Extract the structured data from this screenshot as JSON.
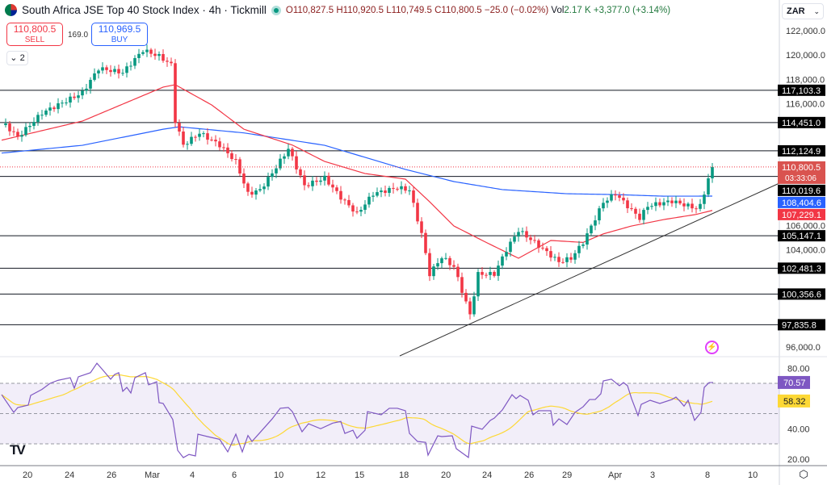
{
  "header": {
    "title": "South Africa JSE Top 40 Stock Index · 4h · Tickmill",
    "open": "O110,827.5",
    "high": "H110,920.5",
    "low": "L110,749.5",
    "close": "C110,800.5",
    "change": "−25.0 (−0.02%)",
    "vol_label": "Vol",
    "volume": "2.17 K",
    "vol_change": "+3,377.0 (+3.14%)"
  },
  "trade": {
    "sell_price": "110,800.5",
    "sell_label": "SELL",
    "spread": "169.0",
    "buy_price": "110,969.5",
    "buy_label": "BUY"
  },
  "indicators_toggle": "2",
  "currency": "ZAR",
  "colors": {
    "up": "#089981",
    "down": "#f23645",
    "ma_fast": "#f23645",
    "ma_slow": "#2962ff",
    "rsi": "#7e57c2",
    "rsi_ma": "#fdd835",
    "level": "#131722"
  },
  "chart_data": {
    "type": "candlestick",
    "price_axis": {
      "range": [
        95000,
        123500
      ],
      "ticks": [
        "122,000.0",
        "120,000.0",
        "118,000.0",
        "116,000.0",
        "106,000.0",
        "104,000.0",
        "96,000.0"
      ],
      "tick_values": [
        122000,
        120000,
        118000,
        116000,
        106000,
        104000,
        96000
      ]
    },
    "x_labels": [
      "20",
      "24",
      "26",
      "Mar",
      "4",
      "6",
      "10",
      "12",
      "15",
      "18",
      "20",
      "24",
      "26",
      "29",
      "Apr",
      "3",
      "8",
      "10"
    ],
    "x_label_bars": [
      6.4,
      16.8,
      27.2,
      36.6,
      47.8,
      58.2,
      68.6,
      79,
      88.6,
      99.6,
      110,
      120.2,
      130.6,
      140,
      151.4,
      161.8,
      175.4,
      186
    ],
    "close_keypoints": [
      [
        1,
        114240
      ],
      [
        4,
        113250
      ],
      [
        10,
        115240
      ],
      [
        20,
        116900
      ],
      [
        24,
        118900
      ],
      [
        30,
        118550
      ],
      [
        35,
        120400
      ],
      [
        39,
        119900
      ],
      [
        42,
        119200
      ],
      [
        43,
        114600
      ],
      [
        45,
        112600
      ],
      [
        49,
        113600
      ],
      [
        54,
        112600
      ],
      [
        58,
        111250
      ],
      [
        61,
        108600
      ],
      [
        64,
        108900
      ],
      [
        67,
        110300
      ],
      [
        71,
        112300
      ],
      [
        75,
        109250
      ],
      [
        80,
        109900
      ],
      [
        84,
        108300
      ],
      [
        88,
        106950
      ],
      [
        92,
        108600
      ],
      [
        98,
        109100
      ],
      [
        101,
        108900
      ],
      [
        104,
        105300
      ],
      [
        106,
        102000
      ],
      [
        109,
        103400
      ],
      [
        112,
        102600
      ],
      [
        115,
        99650
      ],
      [
        116,
        98650
      ],
      [
        118,
        102000
      ],
      [
        122,
        102000
      ],
      [
        125,
        104000
      ],
      [
        128,
        105600
      ],
      [
        132,
        104600
      ],
      [
        138,
        103000
      ],
      [
        141,
        103300
      ],
      [
        144,
        104600
      ],
      [
        149,
        107900
      ],
      [
        152,
        108600
      ],
      [
        156,
        107250
      ],
      [
        158,
        106600
      ],
      [
        160,
        107600
      ],
      [
        166,
        108000
      ],
      [
        172,
        107400
      ],
      [
        173,
        107600
      ],
      [
        175,
        109800
      ],
      [
        176,
        110800.5
      ]
    ],
    "ma_fast_keypoints": [
      [
        0,
        113000
      ],
      [
        20,
        114570
      ],
      [
        40,
        117360
      ],
      [
        43,
        117560
      ],
      [
        52,
        115900
      ],
      [
        60,
        113900
      ],
      [
        72,
        112600
      ],
      [
        80,
        111250
      ],
      [
        90,
        110260
      ],
      [
        100,
        109800
      ],
      [
        106,
        107940
      ],
      [
        112,
        105950
      ],
      [
        120,
        104600
      ],
      [
        128,
        103300
      ],
      [
        136,
        104760
      ],
      [
        144,
        104600
      ],
      [
        149,
        105300
      ],
      [
        156,
        105950
      ],
      [
        164,
        106480
      ],
      [
        172,
        106900
      ],
      [
        176,
        107229.1
      ]
    ],
    "ma_slow_keypoints": [
      [
        0,
        111940
      ],
      [
        20,
        112580
      ],
      [
        40,
        113900
      ],
      [
        44,
        114100
      ],
      [
        60,
        113600
      ],
      [
        80,
        112580
      ],
      [
        100,
        110600
      ],
      [
        112,
        109600
      ],
      [
        124,
        108940
      ],
      [
        140,
        108600
      ],
      [
        152,
        108530
      ],
      [
        164,
        108400
      ],
      [
        176,
        108404.6
      ]
    ],
    "levels": [
      "117,103.3",
      "114,451.0",
      "112,124.9",
      "110,019.6",
      "105,147.1",
      "102,481.3",
      "100,356.6",
      "97,835.8"
    ],
    "level_values": [
      117103.3,
      114451.0,
      112124.9,
      110019.6,
      105147.1,
      102481.3,
      100356.6,
      97835.8
    ],
    "last_price": "110,800.5",
    "last_value": 110800.5,
    "countdown": "03:33:06",
    "ma_slow_label": "108,404.6",
    "ma_fast_label": "107,229.1",
    "rsi": {
      "range": [
        15,
        85
      ],
      "bands": [
        70,
        50,
        30
      ],
      "ticks": [
        "80.00",
        "40.00",
        "20.00"
      ],
      "tick_values": [
        80,
        40,
        20
      ],
      "value_label": "70.57",
      "ma_label": "58.32",
      "keypoints": [
        [
          0,
          62.5
        ],
        [
          3,
          50.8
        ],
        [
          4,
          54
        ],
        [
          6.6,
          55.6
        ],
        [
          7.2,
          62
        ],
        [
          10,
          66
        ],
        [
          12,
          70
        ],
        [
          14,
          72
        ],
        [
          17,
          73.7
        ],
        [
          18,
          66.8
        ],
        [
          19,
          74.3
        ],
        [
          22,
          77
        ],
        [
          23.6,
          83.3
        ],
        [
          25,
          79
        ],
        [
          27,
          72.7
        ],
        [
          28,
          75.9
        ],
        [
          29,
          77
        ],
        [
          30,
          64.7
        ],
        [
          31,
          67.3
        ],
        [
          32,
          63.6
        ],
        [
          33,
          73.7
        ],
        [
          35.6,
          77
        ],
        [
          36.4,
          69
        ],
        [
          38.4,
          71
        ],
        [
          39,
          57.2
        ],
        [
          40,
          56.7
        ],
        [
          42.4,
          46
        ],
        [
          43.6,
          25.7
        ],
        [
          45,
          20.9
        ],
        [
          46.4,
          23
        ],
        [
          48,
          22
        ],
        [
          48.6,
          36.4
        ],
        [
          51,
          34.8
        ],
        [
          54,
          33
        ],
        [
          56,
          24.7
        ],
        [
          58,
          36.4
        ],
        [
          59.6,
          24.7
        ],
        [
          61,
          35.5
        ],
        [
          62,
          31.6
        ],
        [
          64,
          37.5
        ],
        [
          67,
          46.5
        ],
        [
          69,
          53.5
        ],
        [
          71,
          54
        ],
        [
          72,
          51.3
        ],
        [
          74.4,
          38
        ],
        [
          76,
          43.3
        ],
        [
          79,
          40
        ],
        [
          82,
          43.7
        ],
        [
          84,
          44.8
        ],
        [
          85,
          36.9
        ],
        [
          87,
          39
        ],
        [
          88,
          33.7
        ],
        [
          90,
          39
        ],
        [
          90.6,
          51.3
        ],
        [
          94,
          49.2
        ],
        [
          96,
          53.5
        ],
        [
          98,
          53.5
        ],
        [
          100,
          51.9
        ],
        [
          101,
          36.9
        ],
        [
          103,
          31.6
        ],
        [
          105,
          31
        ],
        [
          105.6,
          22.5
        ],
        [
          108,
          35.3
        ],
        [
          109,
          34.8
        ],
        [
          111.6,
          35.3
        ],
        [
          112.6,
          26.8
        ],
        [
          115.6,
          21
        ],
        [
          116.4,
          41.7
        ],
        [
          119,
          39.6
        ],
        [
          121,
          45.5
        ],
        [
          122,
          47
        ],
        [
          124,
          52.4
        ],
        [
          126.4,
          62.5
        ],
        [
          127.4,
          59.9
        ],
        [
          128.4,
          62
        ],
        [
          130.4,
          58.8
        ],
        [
          131.6,
          49.2
        ],
        [
          133,
          51.9
        ],
        [
          136,
          51.9
        ],
        [
          136.6,
          42.3
        ],
        [
          138,
          46.5
        ],
        [
          140,
          42.8
        ],
        [
          142,
          50.8
        ],
        [
          144,
          54.5
        ],
        [
          145.6,
          59.3
        ],
        [
          147,
          59.3
        ],
        [
          148.4,
          63.1
        ],
        [
          149,
          71.6
        ],
        [
          151,
          72.7
        ],
        [
          153,
          68.4
        ],
        [
          154,
          70.5
        ],
        [
          155,
          68.4
        ],
        [
          156,
          59.9
        ],
        [
          157.6,
          48.7
        ],
        [
          158.4,
          56.1
        ],
        [
          160.6,
          58.8
        ],
        [
          163,
          56.7
        ],
        [
          166,
          59.3
        ],
        [
          167,
          60.9
        ],
        [
          168,
          58.1
        ],
        [
          169,
          54.9
        ],
        [
          170,
          58.8
        ],
        [
          171.6,
          45.5
        ],
        [
          173.2,
          50.8
        ],
        [
          174,
          67.3
        ],
        [
          175.2,
          70.5
        ],
        [
          176.2,
          70.57
        ]
      ]
    }
  }
}
